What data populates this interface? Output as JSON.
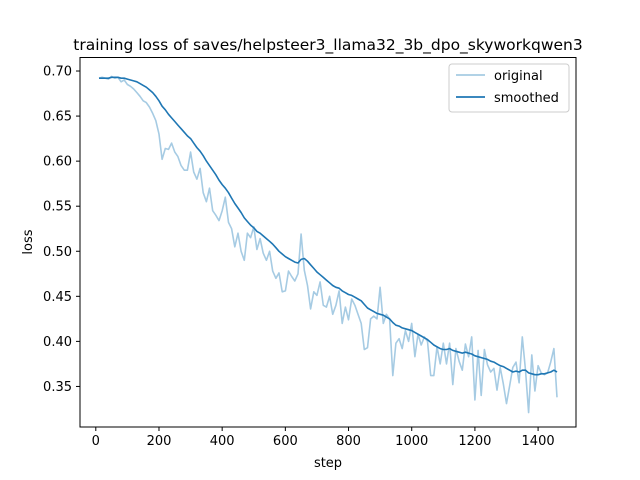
{
  "chart_data": {
    "type": "line",
    "title": "training loss of saves/helpsteer3_llama32_3b_dpo_skyworkqwen3",
    "xlabel": "step",
    "ylabel": "loss",
    "xlim": [
      -50,
      1520
    ],
    "ylim": [
      0.305,
      0.715
    ],
    "xticks": [
      0,
      200,
      400,
      600,
      800,
      1000,
      1200,
      1400
    ],
    "yticks": [
      0.35,
      0.4,
      0.45,
      0.5,
      0.55,
      0.6,
      0.65,
      0.7
    ],
    "ytick_labels": [
      "0.35",
      "0.40",
      "0.45",
      "0.50",
      "0.55",
      "0.60",
      "0.65",
      "0.70"
    ],
    "grid": false,
    "legend_position": "upper right",
    "series": [
      {
        "name": "original",
        "color": "#a6cbe3",
        "x": [
          10,
          20,
          30,
          40,
          50,
          60,
          70,
          80,
          90,
          100,
          110,
          120,
          130,
          140,
          150,
          160,
          170,
          180,
          190,
          200,
          210,
          220,
          230,
          240,
          250,
          260,
          270,
          280,
          290,
          300,
          310,
          320,
          330,
          340,
          350,
          360,
          370,
          380,
          390,
          400,
          410,
          420,
          430,
          440,
          450,
          460,
          470,
          480,
          490,
          500,
          510,
          520,
          530,
          540,
          550,
          560,
          570,
          580,
          590,
          600,
          610,
          620,
          630,
          640,
          650,
          660,
          670,
          680,
          690,
          700,
          710,
          720,
          730,
          740,
          750,
          760,
          770,
          780,
          790,
          800,
          810,
          820,
          830,
          840,
          850,
          860,
          870,
          880,
          890,
          900,
          910,
          920,
          930,
          940,
          950,
          960,
          970,
          980,
          990,
          1000,
          1010,
          1020,
          1030,
          1040,
          1050,
          1060,
          1070,
          1080,
          1090,
          1100,
          1110,
          1120,
          1130,
          1140,
          1150,
          1160,
          1170,
          1180,
          1190,
          1200,
          1210,
          1220,
          1230,
          1240,
          1250,
          1260,
          1270,
          1280,
          1290,
          1300,
          1310,
          1320,
          1330,
          1340,
          1350,
          1360,
          1370,
          1380,
          1390,
          1400,
          1410,
          1420,
          1430,
          1440,
          1450,
          1460
        ],
        "values": [
          0.692,
          0.693,
          0.692,
          0.691,
          0.694,
          0.692,
          0.693,
          0.688,
          0.69,
          0.685,
          0.683,
          0.68,
          0.676,
          0.672,
          0.667,
          0.665,
          0.66,
          0.653,
          0.645,
          0.63,
          0.602,
          0.614,
          0.613,
          0.62,
          0.61,
          0.605,
          0.595,
          0.59,
          0.59,
          0.61,
          0.588,
          0.58,
          0.592,
          0.565,
          0.555,
          0.57,
          0.545,
          0.54,
          0.534,
          0.545,
          0.56,
          0.532,
          0.525,
          0.505,
          0.52,
          0.5,
          0.49,
          0.52,
          0.515,
          0.527,
          0.502,
          0.514,
          0.498,
          0.49,
          0.5,
          0.478,
          0.47,
          0.476,
          0.455,
          0.456,
          0.478,
          0.472,
          0.467,
          0.475,
          0.519,
          0.479,
          0.462,
          0.436,
          0.455,
          0.451,
          0.466,
          0.44,
          0.438,
          0.45,
          0.43,
          0.44,
          0.456,
          0.42,
          0.438,
          0.424,
          0.447,
          0.44,
          0.43,
          0.42,
          0.391,
          0.393,
          0.425,
          0.428,
          0.425,
          0.46,
          0.42,
          0.43,
          0.425,
          0.362,
          0.398,
          0.403,
          0.392,
          0.412,
          0.4,
          0.42,
          0.383,
          0.408,
          0.396,
          0.405,
          0.4,
          0.362,
          0.362,
          0.394,
          0.375,
          0.398,
          0.375,
          0.398,
          0.352,
          0.392,
          0.378,
          0.368,
          0.397,
          0.383,
          0.405,
          0.335,
          0.39,
          0.34,
          0.391,
          0.374,
          0.366,
          0.37,
          0.346,
          0.371,
          0.353,
          0.331,
          0.351,
          0.371,
          0.377,
          0.354,
          0.405,
          0.368,
          0.321,
          0.385,
          0.345,
          0.373,
          0.365,
          0.363,
          0.365,
          0.377,
          0.392,
          0.338
        ]
      },
      {
        "name": "smoothed",
        "color": "#1f77b4",
        "x": [
          10,
          20,
          30,
          40,
          50,
          60,
          70,
          80,
          90,
          100,
          110,
          120,
          130,
          140,
          150,
          160,
          170,
          180,
          190,
          200,
          210,
          220,
          230,
          240,
          250,
          260,
          270,
          280,
          290,
          300,
          310,
          320,
          330,
          340,
          350,
          360,
          370,
          380,
          390,
          400,
          410,
          420,
          430,
          440,
          450,
          460,
          470,
          480,
          490,
          500,
          510,
          520,
          530,
          540,
          550,
          560,
          570,
          580,
          590,
          600,
          610,
          620,
          630,
          640,
          650,
          660,
          670,
          680,
          690,
          700,
          710,
          720,
          730,
          740,
          750,
          760,
          770,
          780,
          790,
          800,
          810,
          820,
          830,
          840,
          850,
          860,
          870,
          880,
          890,
          900,
          910,
          920,
          930,
          940,
          950,
          960,
          970,
          980,
          990,
          1000,
          1010,
          1020,
          1030,
          1040,
          1050,
          1060,
          1070,
          1080,
          1090,
          1100,
          1110,
          1120,
          1130,
          1140,
          1150,
          1160,
          1170,
          1180,
          1190,
          1200,
          1210,
          1220,
          1230,
          1240,
          1250,
          1260,
          1270,
          1280,
          1290,
          1300,
          1310,
          1320,
          1330,
          1340,
          1350,
          1360,
          1370,
          1380,
          1390,
          1400,
          1410,
          1420,
          1430,
          1440,
          1450,
          1460
        ],
        "values": [
          0.692,
          0.692,
          0.692,
          0.692,
          0.693,
          0.693,
          0.693,
          0.692,
          0.692,
          0.691,
          0.69,
          0.689,
          0.688,
          0.686,
          0.684,
          0.682,
          0.679,
          0.676,
          0.672,
          0.667,
          0.661,
          0.657,
          0.652,
          0.648,
          0.644,
          0.64,
          0.636,
          0.632,
          0.628,
          0.625,
          0.62,
          0.615,
          0.611,
          0.606,
          0.6,
          0.595,
          0.59,
          0.585,
          0.579,
          0.574,
          0.57,
          0.565,
          0.559,
          0.553,
          0.548,
          0.543,
          0.537,
          0.533,
          0.529,
          0.526,
          0.522,
          0.52,
          0.517,
          0.514,
          0.511,
          0.508,
          0.504,
          0.5,
          0.497,
          0.494,
          0.492,
          0.49,
          0.488,
          0.487,
          0.491,
          0.492,
          0.489,
          0.485,
          0.481,
          0.477,
          0.474,
          0.471,
          0.468,
          0.465,
          0.462,
          0.46,
          0.459,
          0.456,
          0.454,
          0.452,
          0.451,
          0.449,
          0.447,
          0.445,
          0.441,
          0.437,
          0.435,
          0.433,
          0.431,
          0.43,
          0.429,
          0.427,
          0.425,
          0.421,
          0.418,
          0.417,
          0.415,
          0.414,
          0.413,
          0.412,
          0.41,
          0.408,
          0.406,
          0.404,
          0.402,
          0.399,
          0.396,
          0.394,
          0.392,
          0.391,
          0.391,
          0.392,
          0.39,
          0.389,
          0.388,
          0.387,
          0.388,
          0.387,
          0.386,
          0.384,
          0.383,
          0.382,
          0.381,
          0.38,
          0.378,
          0.377,
          0.375,
          0.373,
          0.372,
          0.37,
          0.368,
          0.366,
          0.367,
          0.366,
          0.368,
          0.368,
          0.365,
          0.364,
          0.363,
          0.363,
          0.364,
          0.364,
          0.365,
          0.366,
          0.368,
          0.366
        ]
      }
    ]
  }
}
